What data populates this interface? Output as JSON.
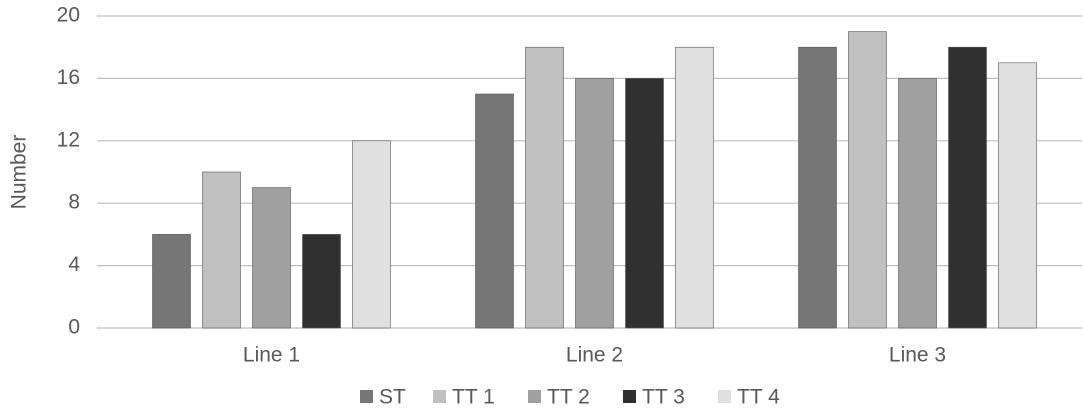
{
  "chart_data": {
    "type": "bar",
    "y_label": "Number",
    "categories": [
      "Line 1",
      "Line 2",
      "Line 3"
    ],
    "series": [
      {
        "name": "ST",
        "color": "#767676",
        "values": [
          6,
          15,
          18
        ]
      },
      {
        "name": "TT 1",
        "color": "#c0c0c0",
        "values": [
          10,
          18,
          19
        ]
      },
      {
        "name": "TT 2",
        "color": "#a0a0a0",
        "values": [
          9,
          16,
          16
        ]
      },
      {
        "name": "TT 3",
        "color": "#303030",
        "values": [
          6,
          16,
          18
        ]
      },
      {
        "name": "TT 4",
        "color": "#e0e0e0",
        "values": [
          12,
          18,
          17
        ]
      }
    ],
    "ylim": [
      0,
      20
    ],
    "yticks": [
      0,
      4,
      8,
      12,
      16,
      20
    ],
    "grid": true,
    "legend": "bottom"
  }
}
